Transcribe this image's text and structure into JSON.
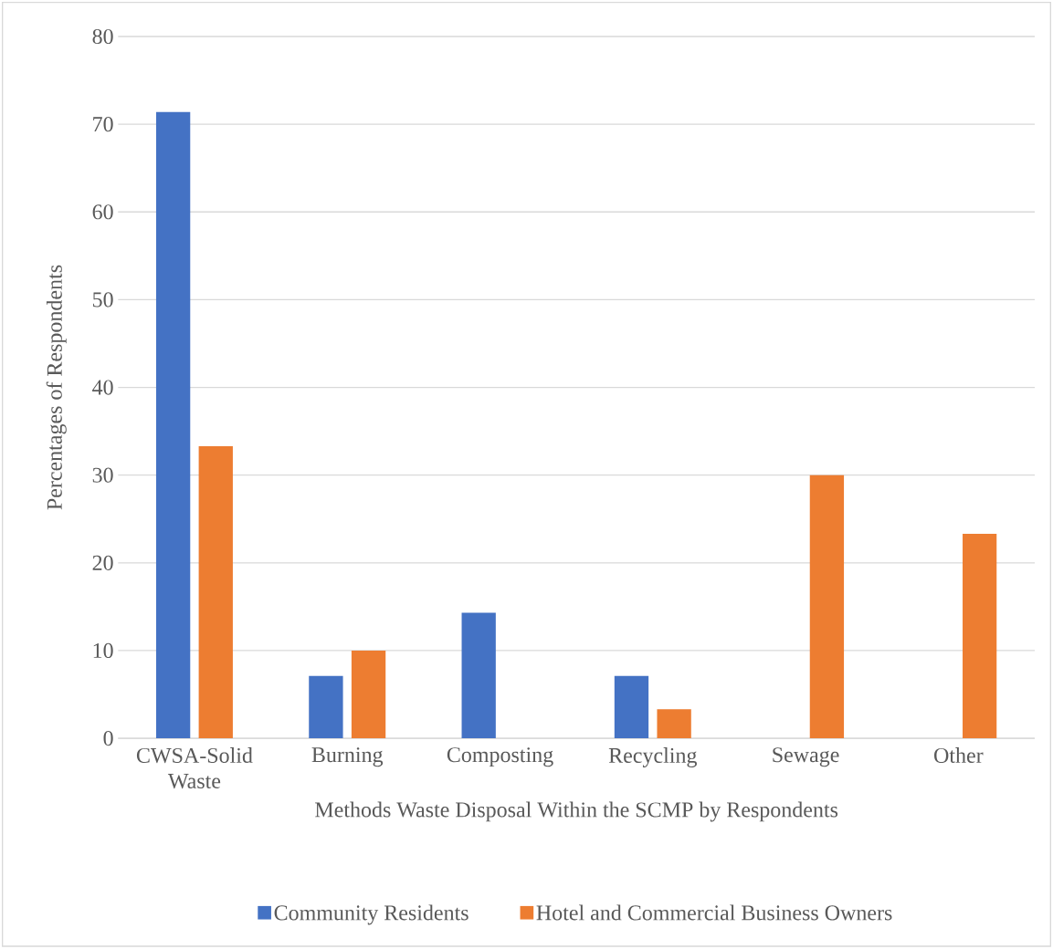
{
  "chart_data": {
    "type": "bar",
    "xlabel": "Methods Waste Disposal Within the SCMP by Respondents",
    "ylabel": "Percentages of Respondents",
    "categories": [
      "CWSA-Solid Waste",
      "Burning",
      "Composting",
      "Recycling",
      "Sewage",
      "Other"
    ],
    "series": [
      {
        "name": "Community Residents",
        "color": "#4472c4",
        "values": [
          71.4,
          7.1,
          14.3,
          7.1,
          0,
          0
        ]
      },
      {
        "name": "Hotel and Commercial Business Owners",
        "color": "#ed7d31",
        "values": [
          33.3,
          10,
          0,
          3.3,
          30,
          23.3
        ]
      }
    ],
    "ylim": [
      0,
      80
    ],
    "yticks": [
      0,
      10,
      20,
      30,
      40,
      50,
      60,
      70,
      80
    ],
    "grid": "y",
    "legend": "bottom"
  }
}
